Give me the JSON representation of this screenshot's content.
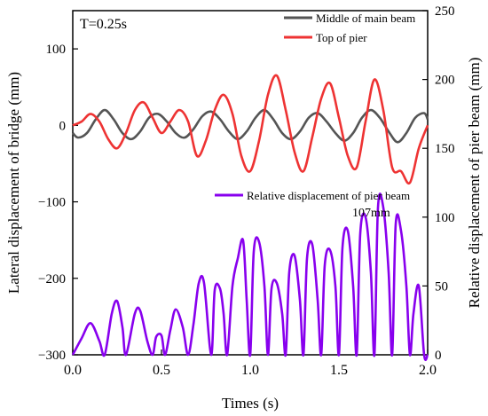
{
  "chart_data": {
    "type": "line",
    "annotation_period": "T=0.25s",
    "annotation_peak": "107mm",
    "xlabel": "Times (s)",
    "ylabel_left": "Lateral displacement of bridge (mm)",
    "ylabel_right": "Relative displacement of pier beam (mm)",
    "xlim": [
      0,
      2.0
    ],
    "ylim_left": [
      -300,
      150
    ],
    "ylim_right": [
      0,
      250
    ],
    "x_ticks": [
      "0.0",
      "0.5",
      "1.0",
      "1.5",
      "2.0"
    ],
    "y_ticks_left": [
      "−300",
      "−200",
      "−100",
      "0",
      "100"
    ],
    "y_ticks_right": [
      "0",
      "50",
      "100",
      "150",
      "200",
      "250"
    ],
    "legend_top": [
      "Middle of main beam",
      "Top of pier"
    ],
    "legend_bottom": "Relative displacement of pier beam",
    "legend_placement": "top-right",
    "grid": false,
    "colors": {
      "middle_of_main_beam": "#555555",
      "top_of_pier": "#ee3333",
      "relative_displacement": "#8800ee"
    },
    "series": [
      {
        "name": "Middle of main beam",
        "axis": "left",
        "color": "#555555",
        "x": [
          0.0,
          0.03,
          0.08,
          0.13,
          0.18,
          0.23,
          0.28,
          0.33,
          0.38,
          0.43,
          0.48,
          0.53,
          0.58,
          0.63,
          0.68,
          0.73,
          0.78,
          0.83,
          0.88,
          0.93,
          0.98,
          1.03,
          1.08,
          1.13,
          1.18,
          1.23,
          1.28,
          1.33,
          1.38,
          1.43,
          1.48,
          1.53,
          1.58,
          1.63,
          1.68,
          1.73,
          1.78,
          1.83,
          1.88,
          1.93,
          1.98,
          2.0
        ],
        "y": [
          -10,
          -16,
          -10,
          8,
          20,
          8,
          -10,
          -18,
          -8,
          10,
          15,
          5,
          -10,
          -16,
          -5,
          12,
          18,
          8,
          -8,
          -18,
          -8,
          10,
          20,
          8,
          -10,
          -18,
          -8,
          10,
          16,
          5,
          -10,
          -20,
          -10,
          10,
          20,
          10,
          -8,
          -22,
          -10,
          10,
          16,
          8
        ]
      },
      {
        "name": "Top of pier",
        "axis": "left",
        "color": "#ee3333",
        "x": [
          0.0,
          0.05,
          0.1,
          0.15,
          0.2,
          0.25,
          0.3,
          0.35,
          0.4,
          0.45,
          0.5,
          0.55,
          0.6,
          0.65,
          0.7,
          0.75,
          0.8,
          0.85,
          0.9,
          0.95,
          1.0,
          1.05,
          1.1,
          1.15,
          1.2,
          1.25,
          1.3,
          1.35,
          1.4,
          1.45,
          1.5,
          1.55,
          1.6,
          1.65,
          1.7,
          1.75,
          1.8,
          1.85,
          1.9,
          1.95,
          2.0
        ],
        "y": [
          0,
          5,
          15,
          5,
          -18,
          -30,
          -10,
          20,
          30,
          10,
          -10,
          5,
          20,
          5,
          -40,
          -20,
          20,
          40,
          15,
          -40,
          -60,
          -20,
          40,
          65,
          20,
          -35,
          -60,
          -15,
          35,
          55,
          10,
          -40,
          -55,
          5,
          60,
          20,
          -55,
          -60,
          -75,
          -30,
          0
        ]
      },
      {
        "name": "Relative displacement of pier beam",
        "axis": "right",
        "color": "#8800ee",
        "x": [
          0.0,
          0.05,
          0.1,
          0.15,
          0.18,
          0.22,
          0.25,
          0.28,
          0.3,
          0.35,
          0.38,
          0.42,
          0.45,
          0.47,
          0.5,
          0.52,
          0.55,
          0.58,
          0.62,
          0.65,
          0.68,
          0.71,
          0.74,
          0.78,
          0.8,
          0.83,
          0.85,
          0.87,
          0.9,
          0.93,
          0.96,
          0.98,
          1.0,
          1.02,
          1.05,
          1.08,
          1.1,
          1.12,
          1.15,
          1.18,
          1.2,
          1.22,
          1.25,
          1.28,
          1.3,
          1.32,
          1.35,
          1.38,
          1.4,
          1.42,
          1.45,
          1.48,
          1.5,
          1.52,
          1.55,
          1.58,
          1.6,
          1.62,
          1.65,
          1.68,
          1.7,
          1.72,
          1.75,
          1.78,
          1.8,
          1.82,
          1.85,
          1.88,
          1.9,
          1.92,
          1.95,
          1.98,
          2.0
        ],
        "y": [
          0,
          12,
          23,
          10,
          0,
          30,
          39,
          20,
          0,
          30,
          32,
          10,
          0,
          13,
          14,
          0,
          18,
          33,
          20,
          0,
          22,
          52,
          52,
          0,
          47,
          48,
          30,
          0,
          50,
          70,
          83,
          40,
          0,
          75,
          82,
          50,
          0,
          48,
          52,
          30,
          0,
          60,
          72,
          40,
          0,
          70,
          80,
          40,
          0,
          65,
          76,
          50,
          0,
          78,
          90,
          50,
          0,
          88,
          100,
          60,
          0,
          107,
          107,
          60,
          0,
          95,
          90,
          50,
          0,
          30,
          50,
          0,
          0
        ]
      }
    ]
  }
}
